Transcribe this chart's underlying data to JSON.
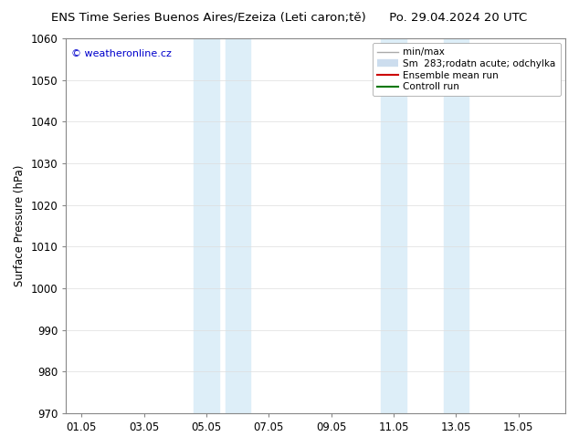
{
  "title_left": "ENS Time Series Buenos Aires/Ezeiza (Leti caron;tě)",
  "title_right": "Po. 29.04.2024 20 UTC",
  "ylabel": "Surface Pressure (hPa)",
  "ylim": [
    970,
    1060
  ],
  "yticks": [
    970,
    980,
    990,
    1000,
    1010,
    1020,
    1030,
    1040,
    1050,
    1060
  ],
  "xtick_labels": [
    "01.05",
    "03.05",
    "05.05",
    "07.05",
    "09.05",
    "11.05",
    "13.05",
    "15.05"
  ],
  "xtick_positions": [
    0,
    2,
    4,
    6,
    8,
    10,
    12,
    14
  ],
  "xlim": [
    -0.5,
    15.5
  ],
  "shaded_bands": [
    {
      "xmin": 3.6,
      "xmax": 4.4
    },
    {
      "xmin": 4.6,
      "xmax": 5.4
    },
    {
      "xmin": 9.6,
      "xmax": 10.4
    },
    {
      "xmin": 11.6,
      "xmax": 12.4
    }
  ],
  "shade_color": "#ddeef8",
  "watermark_text": "© weatheronline.cz",
  "watermark_color": "#0000cc",
  "legend_items": [
    {
      "label": "min/max",
      "color": "#aaaaaa",
      "lw": 1.0,
      "type": "line"
    },
    {
      "label": "Sm  283;rodatn acute; odchylka",
      "color": "#ccddee",
      "lw": 6,
      "type": "bar"
    },
    {
      "label": "Ensemble mean run",
      "color": "#cc0000",
      "lw": 1.5,
      "type": "line"
    },
    {
      "label": "Controll run",
      "color": "#007700",
      "lw": 1.5,
      "type": "line"
    }
  ],
  "background_color": "#ffffff",
  "grid_color": "#dddddd",
  "title_fontsize": 9.5,
  "axis_fontsize": 8.5,
  "legend_fontsize": 7.5
}
